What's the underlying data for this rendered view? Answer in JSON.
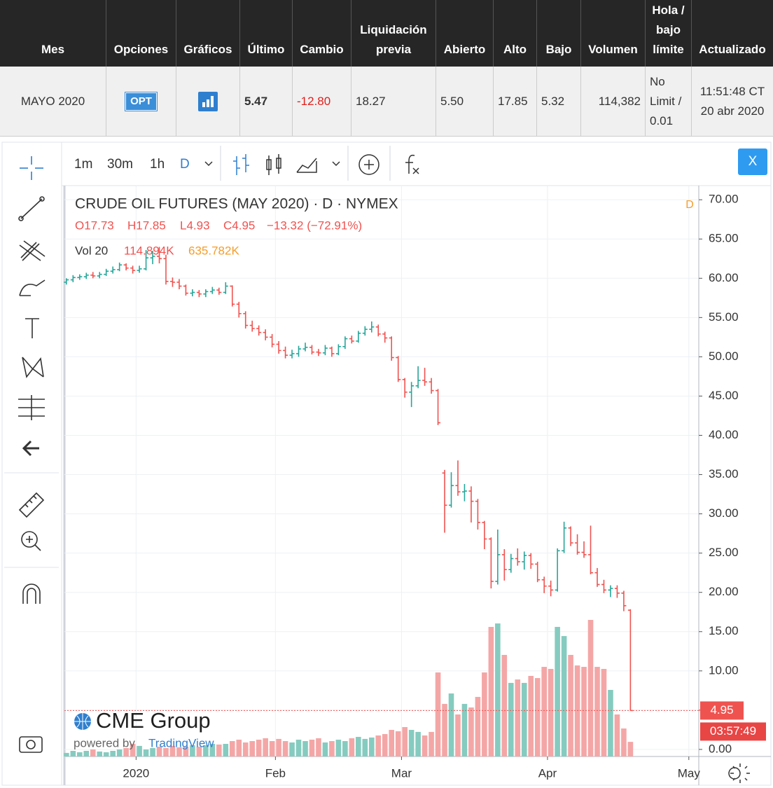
{
  "table": {
    "headers": [
      "Mes",
      "Opciones",
      "Gráficos",
      "Último",
      "Cambio",
      "Liquidación previa",
      "Abierto",
      "Alto",
      "Bajo",
      "Volumen",
      "Hola / bajo límite",
      "Actualizado"
    ],
    "row": [
      "MAYO 2020",
      "OPT",
      "5.47",
      "-12.80",
      "18.27",
      "5.50",
      "17.85",
      "5.32",
      "114,382",
      "No Limit / 0.01",
      "11:51:48 CT 20 abr 2020"
    ]
  },
  "toolbar": {
    "intervals": [
      "1m",
      "30m",
      "1h",
      "D"
    ],
    "close": "X"
  },
  "chart_data": {
    "type": "ohlc",
    "title": "CRUDE OIL FUTURES (MAY 2020) · D · NYMEX",
    "interval_badge": "D",
    "legend_ohlc": [
      "O17.73",
      "H17.85",
      "L4.93",
      "C4.95",
      "−13.32 (−72.91%)"
    ],
    "volume_label": "Vol 20",
    "volume_legend": [
      "114.894K",
      "635.782K"
    ],
    "last_price_label": "4.95",
    "countdown": "03:57:49",
    "watermark": "CME Group",
    "powered_by": "powered by",
    "powered_by_brand": "TradingView",
    "up_color": "#26a69a",
    "down_color": "#ef5350",
    "volume_up_color": "#86cbbf",
    "volume_down_color": "#f4a6a6",
    "grid": true,
    "xlim": [
      -0.3,
      95.3
    ],
    "xticks": [
      {
        "value": 10.5,
        "label": "2020"
      },
      {
        "value": 31.5,
        "label": "Feb"
      },
      {
        "value": 50.5,
        "label": "Mar"
      },
      {
        "value": 72.5,
        "label": "Apr"
      },
      {
        "value": 93.8,
        "label": "May"
      }
    ],
    "ylim": [
      -0.9,
      71.8
    ],
    "yticks": [
      {
        "value": 0,
        "label": "0.00"
      },
      {
        "value": 5,
        "label": "5.00"
      },
      {
        "value": 10,
        "label": "10.00"
      },
      {
        "value": 15,
        "label": "15.00"
      },
      {
        "value": 20,
        "label": "20.00"
      },
      {
        "value": 25,
        "label": "25.00"
      },
      {
        "value": 30,
        "label": "30.00"
      },
      {
        "value": 35,
        "label": "35.00"
      },
      {
        "value": 40,
        "label": "40.00"
      },
      {
        "value": 45,
        "label": "45.00"
      },
      {
        "value": 50,
        "label": "50.00"
      },
      {
        "value": 55,
        "label": "55.00"
      },
      {
        "value": 60,
        "label": "60.00"
      },
      {
        "value": 65,
        "label": "65.00"
      },
      {
        "value": 70,
        "label": "70.00"
      }
    ],
    "ohlc": [
      [
        59.5,
        60.0,
        59.2,
        59.8
      ],
      [
        59.8,
        60.4,
        59.5,
        60.1
      ],
      [
        60.1,
        60.5,
        59.8,
        60.2
      ],
      [
        60.2,
        60.7,
        59.9,
        60.4
      ],
      [
        60.4,
        60.8,
        60.0,
        60.3
      ],
      [
        60.3,
        60.8,
        60.0,
        60.5
      ],
      [
        60.5,
        61.2,
        60.3,
        60.9
      ],
      [
        60.9,
        61.5,
        60.6,
        61.1
      ],
      [
        61.1,
        62.0,
        60.9,
        61.7
      ],
      [
        61.7,
        61.9,
        61.0,
        61.3
      ],
      [
        61.3,
        61.6,
        60.6,
        61.0
      ],
      [
        61.0,
        61.6,
        60.7,
        61.2
      ],
      [
        61.2,
        63.6,
        61.0,
        62.6
      ],
      [
        62.6,
        63.5,
        61.8,
        62.8
      ],
      [
        62.8,
        64.0,
        61.9,
        62.5
      ],
      [
        62.5,
        63.0,
        59.2,
        59.6
      ],
      [
        59.6,
        60.1,
        58.9,
        59.5
      ],
      [
        59.5,
        59.9,
        58.6,
        59.0
      ],
      [
        59.0,
        59.2,
        57.8,
        58.1
      ],
      [
        58.1,
        58.6,
        57.7,
        58.2
      ],
      [
        58.2,
        58.5,
        57.6,
        58.0
      ],
      [
        58.0,
        58.6,
        57.6,
        58.3
      ],
      [
        58.3,
        58.9,
        58.0,
        58.5
      ],
      [
        58.5,
        58.8,
        57.9,
        58.2
      ],
      [
        58.2,
        59.5,
        58.0,
        59.0
      ],
      [
        59.0,
        59.1,
        56.4,
        56.7
      ],
      [
        56.7,
        57.0,
        55.0,
        55.5
      ],
      [
        55.5,
        55.8,
        53.6,
        54.0
      ],
      [
        54.0,
        54.6,
        53.2,
        53.6
      ],
      [
        53.6,
        54.0,
        52.7,
        53.1
      ],
      [
        53.1,
        53.5,
        52.1,
        52.5
      ],
      [
        52.5,
        52.9,
        51.2,
        51.6
      ],
      [
        51.6,
        52.0,
        50.4,
        50.8
      ],
      [
        50.8,
        51.3,
        49.8,
        50.2
      ],
      [
        50.2,
        50.9,
        49.8,
        50.4
      ],
      [
        50.4,
        51.4,
        50.0,
        51.0
      ],
      [
        51.0,
        51.8,
        50.7,
        51.2
      ],
      [
        51.2,
        51.5,
        50.3,
        50.6
      ],
      [
        50.6,
        51.0,
        50.1,
        50.5
      ],
      [
        50.5,
        51.5,
        50.2,
        51.1
      ],
      [
        51.1,
        51.3,
        50.0,
        50.4
      ],
      [
        50.4,
        51.6,
        50.2,
        51.3
      ],
      [
        51.3,
        52.6,
        51.0,
        52.3
      ],
      [
        52.3,
        52.7,
        51.7,
        52.0
      ],
      [
        52.0,
        53.3,
        51.8,
        53.0
      ],
      [
        53.0,
        53.9,
        52.7,
        53.5
      ],
      [
        53.5,
        54.5,
        53.1,
        53.8
      ],
      [
        53.8,
        54.1,
        52.6,
        52.9
      ],
      [
        52.9,
        53.2,
        51.8,
        52.4
      ],
      [
        52.4,
        52.6,
        49.5,
        49.9
      ],
      [
        49.9,
        50.1,
        46.8,
        47.1
      ],
      [
        47.1,
        47.3,
        44.8,
        45.5
      ],
      [
        45.5,
        46.8,
        43.6,
        46.3
      ],
      [
        46.3,
        48.8,
        46.0,
        47.0
      ],
      [
        47.0,
        48.6,
        46.3,
        46.8
      ],
      [
        46.8,
        47.3,
        45.3,
        45.7
      ],
      [
        45.7,
        45.9,
        41.3,
        41.6
      ],
      [
        35.2,
        35.6,
        27.6,
        31.1
      ],
      [
        31.1,
        35.3,
        30.8,
        33.6
      ],
      [
        33.6,
        36.8,
        32.3,
        32.8
      ],
      [
        32.8,
        33.8,
        31.6,
        32.9
      ],
      [
        32.9,
        33.5,
        28.9,
        31.6
      ],
      [
        31.6,
        31.9,
        28.0,
        28.9
      ],
      [
        28.9,
        29.1,
        25.5,
        26.8
      ],
      [
        26.8,
        27.0,
        20.5,
        21.4
      ],
      [
        21.4,
        28.0,
        21.0,
        24.8
      ],
      [
        24.8,
        25.5,
        21.5,
        22.9
      ],
      [
        22.9,
        24.9,
        22.5,
        24.3
      ],
      [
        24.3,
        25.6,
        23.4,
        23.9
      ],
      [
        23.9,
        25.2,
        22.9,
        24.7
      ],
      [
        24.7,
        25.0,
        23.0,
        23.6
      ],
      [
        23.6,
        23.9,
        21.3,
        21.6
      ],
      [
        21.6,
        22.0,
        19.9,
        20.8
      ],
      [
        20.8,
        21.5,
        19.5,
        20.3
      ],
      [
        20.3,
        25.6,
        20.1,
        25.3
      ],
      [
        25.3,
        29.0,
        25.0,
        28.2
      ],
      [
        28.2,
        28.4,
        25.9,
        26.3
      ],
      [
        26.3,
        27.4,
        24.8,
        25.1
      ],
      [
        25.1,
        26.5,
        24.4,
        24.8
      ],
      [
        24.8,
        28.5,
        22.3,
        22.5
      ],
      [
        22.5,
        23.1,
        20.7,
        21.0
      ],
      [
        21.0,
        21.6,
        19.9,
        20.3
      ],
      [
        20.3,
        20.9,
        19.4,
        20.5
      ],
      [
        20.5,
        20.9,
        19.3,
        19.9
      ],
      [
        19.9,
        20.2,
        17.6,
        18.3
      ],
      [
        17.73,
        17.85,
        4.93,
        4.95
      ]
    ],
    "volume": [
      28,
      44,
      33,
      44,
      55,
      39,
      33,
      44,
      55,
      66,
      99,
      83,
      55,
      66,
      77,
      66,
      83,
      72,
      77,
      88,
      77,
      88,
      99,
      94,
      99,
      121,
      132,
      110,
      121,
      132,
      143,
      121,
      138,
      121,
      110,
      132,
      121,
      132,
      143,
      110,
      121,
      132,
      121,
      143,
      154,
      138,
      149,
      165,
      176,
      209,
      198,
      231,
      209,
      193,
      165,
      193,
      660,
      413,
      495,
      330,
      413,
      385,
      468,
      660,
      1018,
      1045,
      798,
      578,
      605,
      578,
      633,
      616,
      704,
      688,
      1018,
      946,
      798,
      715,
      704,
      1073,
      704,
      688,
      523,
      330,
      220,
      114.894
    ]
  }
}
